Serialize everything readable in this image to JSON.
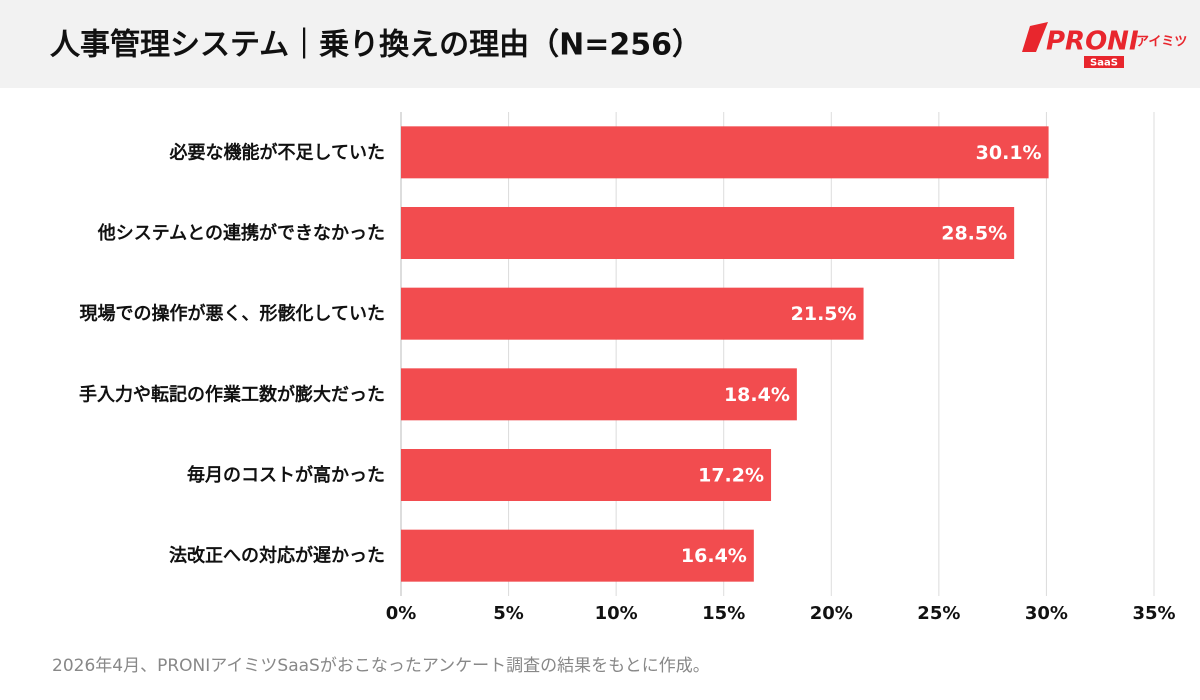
{
  "chart_data": {
    "type": "barh",
    "title": "人事管理システム｜乗り換えの理由（N=256）",
    "categories": [
      "必要な機能が不足していた",
      "他システムとの連携ができなかった",
      "現場での操作が悪く、形骸化していた",
      "手入力や転記の作業工数が膨大だった",
      "毎月のコストが高かった",
      "法改正への対応が遅かった"
    ],
    "values": [
      30.1,
      28.5,
      21.5,
      18.4,
      17.2,
      16.4
    ],
    "value_labels": [
      "30.1%",
      "28.5%",
      "21.5%",
      "18.4%",
      "17.2%",
      "16.4%"
    ],
    "color": "#f24c4f",
    "xlim": [
      0,
      35
    ],
    "xticks": [
      {
        "value": 0,
        "label": "0%"
      },
      {
        "value": 5,
        "label": "5%"
      },
      {
        "value": 10,
        "label": "10%"
      },
      {
        "value": 15,
        "label": "15%"
      },
      {
        "value": 20,
        "label": "20%"
      },
      {
        "value": 25,
        "label": "25%"
      },
      {
        "value": 30,
        "label": "30%"
      },
      {
        "value": 35,
        "label": "35%"
      }
    ],
    "grid": true,
    "footnote": "2026年4月、PRONIアイミツSaaSがおこなったアンケート調査の結果をもとに作成。"
  },
  "logo": {
    "brand": "PRONI",
    "sub": "アイミツ",
    "tag": "SaaS"
  }
}
